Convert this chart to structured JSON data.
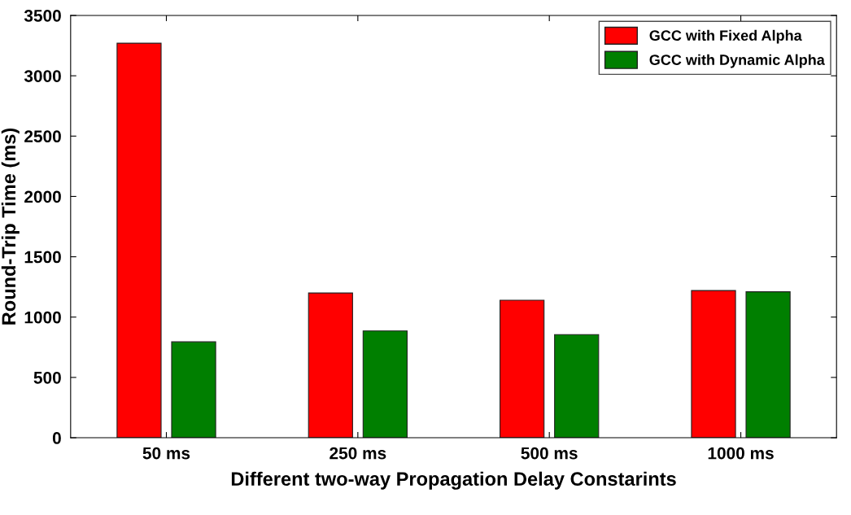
{
  "chart_data": {
    "type": "bar",
    "xlabel": "Different two-way Propagation Delay Constarints",
    "ylabel": "Round-Trip Time (ms)",
    "categories": [
      "50 ms",
      "250 ms",
      "500 ms",
      "1000 ms"
    ],
    "series": [
      {
        "name": "GCC with Fixed Alpha",
        "color": "#ff0000",
        "values": [
          3270,
          1200,
          1140,
          1220
        ]
      },
      {
        "name": "GCC with Dynamic Alpha",
        "color": "#007f00",
        "values": [
          795,
          885,
          855,
          1210
        ]
      }
    ],
    "ylim": [
      0,
      3500
    ],
    "yticks": [
      0,
      500,
      1000,
      1500,
      2000,
      2500,
      3000,
      3500
    ],
    "grid": false,
    "legend": "top right"
  }
}
